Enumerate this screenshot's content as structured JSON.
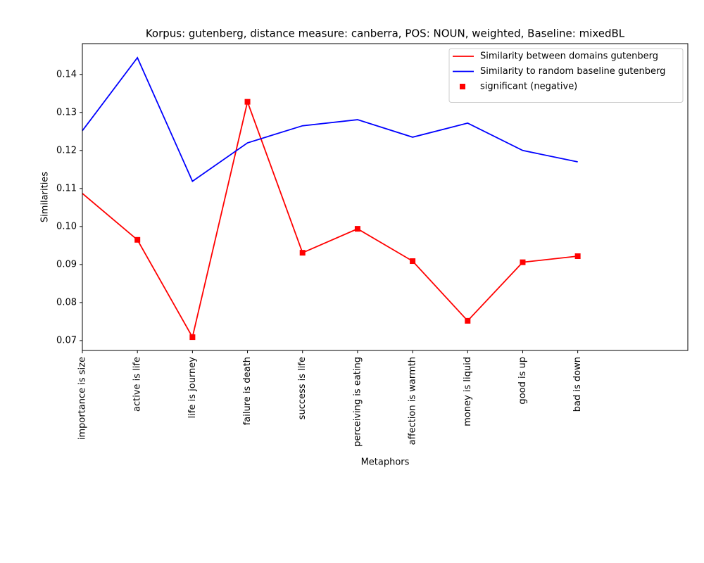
{
  "chart_data": {
    "type": "line",
    "title": "Korpus: gutenberg, distance measure: canberra, POS: NOUN, weighted, Baseline: mixedBL",
    "x_label": "Metaphors",
    "y_label": "Similarities",
    "categories": [
      "importance is size",
      "active is life",
      "life is journey",
      "failure is death",
      "success is life",
      "perceiving is eating",
      "affection is warmth",
      "money is liquid",
      "good is up",
      "bad is down"
    ],
    "series": [
      {
        "name": "Similarity between domains gutenberg",
        "color": "#ff0000",
        "style": "line",
        "values": [
          0.1087,
          0.0965,
          0.0709,
          0.1328,
          0.0931,
          0.0994,
          0.0909,
          0.0752,
          0.0906,
          0.0922
        ]
      },
      {
        "name": "Similarity to random baseline gutenberg",
        "color": "#0000ff",
        "style": "line",
        "values": [
          0.1252,
          0.1444,
          0.1119,
          0.122,
          0.1265,
          0.1281,
          0.1235,
          0.1272,
          0.12,
          0.117
        ]
      },
      {
        "name": "significant (negative)",
        "color": "#ff0000",
        "style": "marker",
        "values": [
          null,
          0.0965,
          0.0709,
          0.1328,
          0.0931,
          0.0994,
          0.0909,
          0.0752,
          0.0906,
          0.0922
        ]
      }
    ],
    "ylim": [
      0.0674,
      0.1481
    ],
    "yticks": [
      {
        "value": 0.07,
        "label": "0.07"
      },
      {
        "value": 0.08,
        "label": "0.08"
      },
      {
        "value": 0.09,
        "label": "0.09"
      },
      {
        "value": 0.1,
        "label": "0.10"
      },
      {
        "value": 0.11,
        "label": "0.11"
      },
      {
        "value": 0.12,
        "label": "0.12"
      },
      {
        "value": 0.13,
        "label": "0.13"
      },
      {
        "value": 0.14,
        "label": "0.14"
      }
    ],
    "legend": "upper right",
    "grid": false
  }
}
